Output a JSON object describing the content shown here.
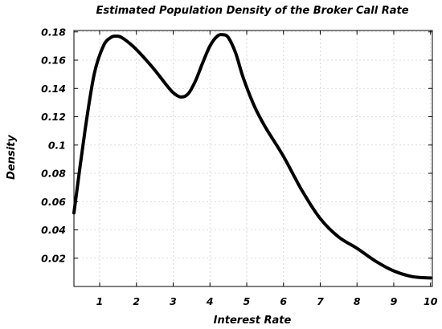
{
  "chart_data": {
    "type": "line",
    "title": "Estimated Population Density of the Broker Call Rate",
    "xlabel": "Interest Rate",
    "ylabel": "Density",
    "xlim": [
      0.3,
      10.05
    ],
    "ylim": [
      0.0,
      0.181
    ],
    "xticks": [
      1,
      2,
      3,
      4,
      5,
      6,
      7,
      8,
      9,
      10
    ],
    "xtick_labels": [
      "1",
      "2",
      "3",
      "4",
      "5",
      "6",
      "7",
      "8",
      "9",
      "10"
    ],
    "yticks": [
      0.02,
      0.04,
      0.06,
      0.08,
      0.1,
      0.12,
      0.14,
      0.16,
      0.18
    ],
    "ytick_labels": [
      "0.02",
      "0.04",
      "0.06",
      "0.08",
      "0.1",
      "0.12",
      "0.14",
      "0.16",
      "0.18"
    ],
    "grid": true,
    "series": [
      {
        "color": "#000000",
        "x": [
          0.3,
          0.6,
          0.85,
          1.1,
          1.3,
          1.45,
          1.6,
          1.9,
          2.2,
          2.5,
          2.8,
          3.0,
          3.2,
          3.4,
          3.6,
          3.8,
          4.0,
          4.2,
          4.35,
          4.5,
          4.7,
          4.9,
          5.2,
          5.5,
          6.0,
          6.5,
          7.0,
          7.5,
          8.0,
          8.5,
          9.0,
          9.5,
          10.0
        ],
        "y": [
          0.052,
          0.11,
          0.15,
          0.17,
          0.176,
          0.177,
          0.176,
          0.17,
          0.162,
          0.153,
          0.143,
          0.137,
          0.134,
          0.136,
          0.145,
          0.158,
          0.17,
          0.177,
          0.178,
          0.176,
          0.165,
          0.148,
          0.128,
          0.113,
          0.092,
          0.068,
          0.048,
          0.035,
          0.027,
          0.018,
          0.011,
          0.007,
          0.006
        ]
      }
    ]
  }
}
